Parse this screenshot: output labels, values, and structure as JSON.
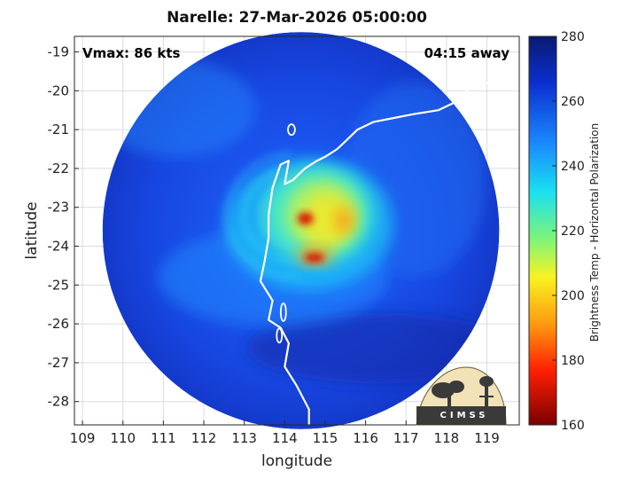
{
  "title": "Narelle: 27-Mar-2026 05:00:00",
  "annotations": {
    "vmax": "Vmax: 86 kts",
    "away": "04:15 away"
  },
  "logo": {
    "text": "CIMSS"
  },
  "colors": {
    "cold_end": "#0e1e7e",
    "warm_end": "#7a0000",
    "coast": "#ffffff",
    "background": "#ffffff"
  },
  "chart_data": {
    "type": "heatmap",
    "title": "Narelle: 27-Mar-2026 05:00:00",
    "xlabel": "longitude",
    "ylabel": "latitude",
    "xlim": [
      108.8,
      119.8
    ],
    "ylim": [
      -28.6,
      -18.6
    ],
    "x_ticks": [
      109,
      110,
      111,
      112,
      113,
      114,
      115,
      116,
      117,
      118,
      119
    ],
    "y_ticks": [
      -19,
      -20,
      -21,
      -22,
      -23,
      -24,
      -25,
      -26,
      -27,
      -28
    ],
    "grid": true,
    "colorbar": {
      "label": "Brightness Temp - Horizontal Polarization",
      "range": [
        160,
        280
      ],
      "ticks": [
        280,
        260,
        240,
        220,
        200,
        180,
        160
      ],
      "colormap": "jet"
    },
    "swath_center": [
      114.4,
      -23.6
    ],
    "storm_center": [
      114.6,
      -23.2
    ],
    "min_brightness_temp": 188,
    "coastline": [
      [
        119.8,
        -19.6
      ],
      [
        119.5,
        -19.7
      ],
      [
        119.2,
        -19.8
      ],
      [
        118.8,
        -19.8
      ],
      [
        118.5,
        -20.0
      ],
      [
        118.2,
        -20.3
      ],
      [
        117.8,
        -20.5
      ],
      [
        117.2,
        -20.6
      ],
      [
        116.7,
        -20.7
      ],
      [
        116.2,
        -20.8
      ],
      [
        115.8,
        -21.0
      ],
      [
        115.5,
        -21.3
      ],
      [
        115.3,
        -21.5
      ],
      [
        115.0,
        -21.7
      ],
      [
        114.8,
        -21.8
      ],
      [
        114.5,
        -22.0
      ],
      [
        114.2,
        -22.3
      ],
      [
        114.0,
        -22.4
      ],
      [
        114.1,
        -21.8
      ],
      [
        113.9,
        -21.9
      ],
      [
        113.7,
        -22.5
      ],
      [
        113.6,
        -23.2
      ],
      [
        113.6,
        -23.8
      ],
      [
        113.5,
        -24.4
      ],
      [
        113.4,
        -24.9
      ],
      [
        113.7,
        -25.4
      ],
      [
        113.6,
        -25.9
      ],
      [
        113.9,
        -26.1
      ],
      [
        114.1,
        -26.5
      ],
      [
        114.0,
        -27.1
      ],
      [
        114.3,
        -27.6
      ],
      [
        114.6,
        -28.2
      ],
      [
        114.6,
        -28.6
      ]
    ]
  }
}
